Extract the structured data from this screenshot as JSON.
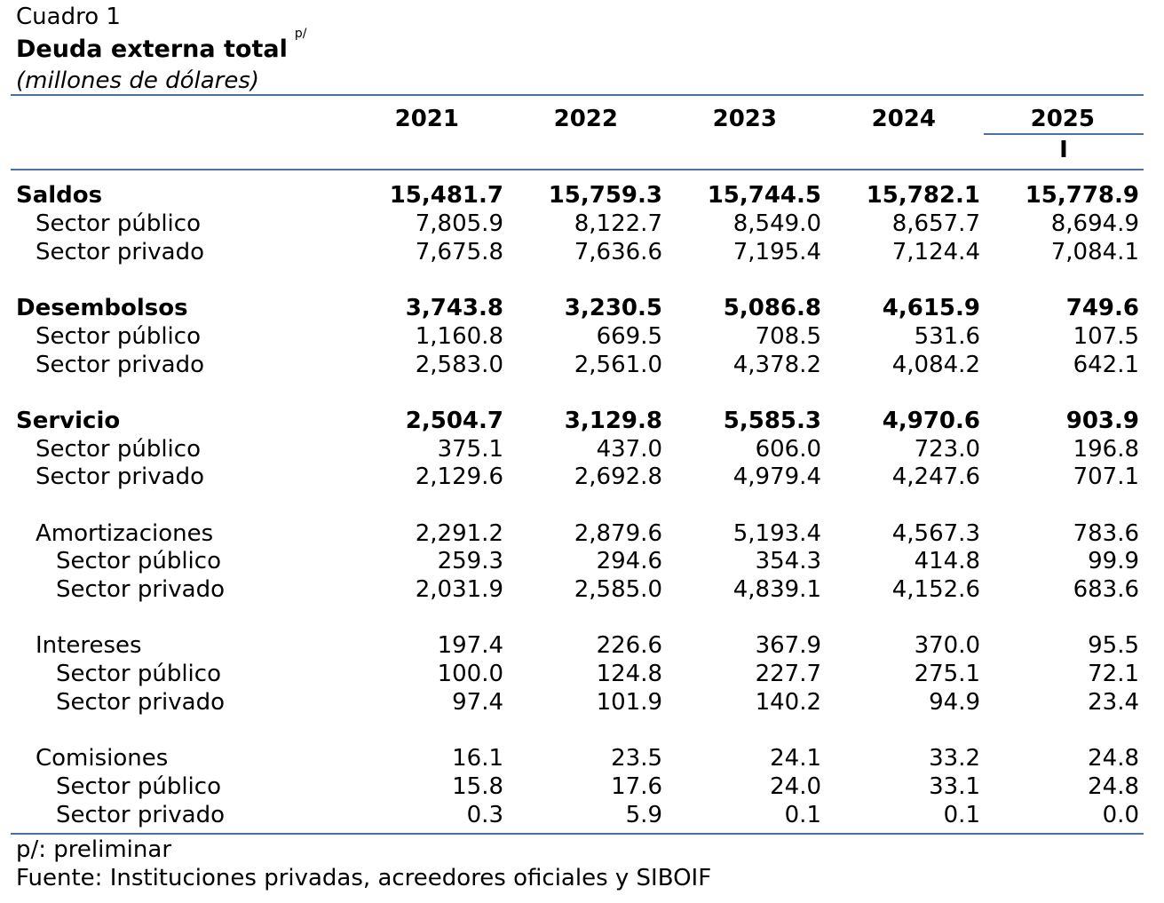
{
  "header": {
    "label": "Cuadro 1",
    "title": "Deuda externa total",
    "title_sup": "p/",
    "subtitle": "(millones de dólares)"
  },
  "columns": [
    "2021",
    "2022",
    "2023",
    "2024",
    "2025"
  ],
  "last_column_sub": "I",
  "rows": [
    {
      "label": "Saldos",
      "level": 0,
      "bold": true,
      "values": [
        "15,481.7",
        "15,759.3",
        "15,744.5",
        "15,782.1",
        "15,778.9"
      ]
    },
    {
      "label": "Sector público",
      "level": 1,
      "bold": false,
      "values": [
        "7,805.9",
        "8,122.7",
        "8,549.0",
        "8,657.7",
        "8,694.9"
      ]
    },
    {
      "label": "Sector privado",
      "level": 1,
      "bold": false,
      "values": [
        "7,675.8",
        "7,636.6",
        "7,195.4",
        "7,124.4",
        "7,084.1"
      ]
    },
    {
      "label": "Desembolsos",
      "level": 0,
      "bold": true,
      "values": [
        "3,743.8",
        "3,230.5",
        "5,086.8",
        "4,615.9",
        "749.6"
      ]
    },
    {
      "label": "Sector público",
      "level": 1,
      "bold": false,
      "values": [
        "1,160.8",
        "669.5",
        "708.5",
        "531.6",
        "107.5"
      ]
    },
    {
      "label": "Sector privado",
      "level": 1,
      "bold": false,
      "values": [
        "2,583.0",
        "2,561.0",
        "4,378.2",
        "4,084.2",
        "642.1"
      ]
    },
    {
      "label": "Servicio",
      "level": 0,
      "bold": true,
      "values": [
        "2,504.7",
        "3,129.8",
        "5,585.3",
        "4,970.6",
        "903.9"
      ]
    },
    {
      "label": "Sector público",
      "level": 1,
      "bold": false,
      "values": [
        "375.1",
        "437.0",
        "606.0",
        "723.0",
        "196.8"
      ]
    },
    {
      "label": "Sector privado",
      "level": 1,
      "bold": false,
      "values": [
        "2,129.6",
        "2,692.8",
        "4,979.4",
        "4,247.6",
        "707.1"
      ]
    },
    {
      "label": "Amortizaciones",
      "level": 1,
      "bold": false,
      "values": [
        "2,291.2",
        "2,879.6",
        "5,193.4",
        "4,567.3",
        "783.6"
      ]
    },
    {
      "label": "Sector público",
      "level": 2,
      "bold": false,
      "values": [
        "259.3",
        "294.6",
        "354.3",
        "414.8",
        "99.9"
      ]
    },
    {
      "label": "Sector privado",
      "level": 2,
      "bold": false,
      "values": [
        "2,031.9",
        "2,585.0",
        "4,839.1",
        "4,152.6",
        "683.6"
      ]
    },
    {
      "label": "Intereses",
      "level": 1,
      "bold": false,
      "values": [
        "197.4",
        "226.6",
        "367.9",
        "370.0",
        "95.5"
      ]
    },
    {
      "label": "Sector público",
      "level": 2,
      "bold": false,
      "values": [
        "100.0",
        "124.8",
        "227.7",
        "275.1",
        "72.1"
      ]
    },
    {
      "label": "Sector privado",
      "level": 2,
      "bold": false,
      "values": [
        "97.4",
        "101.9",
        "140.2",
        "94.9",
        "23.4"
      ]
    },
    {
      "label": "Comisiones",
      "level": 1,
      "bold": false,
      "values": [
        "16.1",
        "23.5",
        "24.1",
        "33.2",
        "24.8"
      ]
    },
    {
      "label": "Sector público",
      "level": 2,
      "bold": false,
      "values": [
        "15.8",
        "17.6",
        "24.0",
        "33.1",
        "24.8"
      ]
    },
    {
      "label": "Sector privado",
      "level": 2,
      "bold": false,
      "values": [
        "0.3",
        "5.9",
        "0.1",
        "0.1",
        "0.0"
      ]
    }
  ],
  "footnotes": {
    "note": "p/: preliminar",
    "source": "Fuente: Instituciones privadas, acreedores oficiales y SIBOIF"
  }
}
